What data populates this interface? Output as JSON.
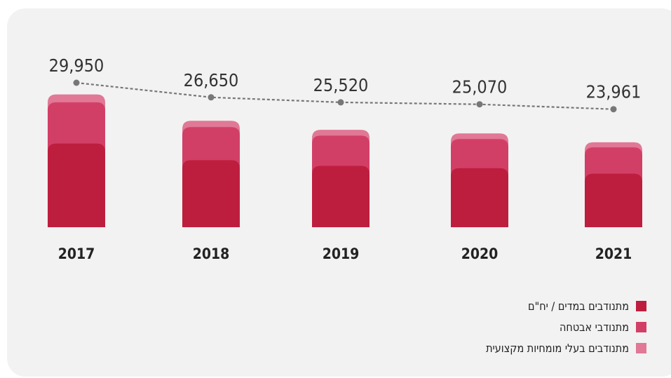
{
  "chart_data": {
    "type": "bar",
    "stacked": true,
    "categories": [
      "2017",
      "2018",
      "2019",
      "2020",
      "2021"
    ],
    "series": [
      {
        "name": "מתנודבים במדים / יח\"ם",
        "color": "#be1e3e"
      },
      {
        "name": "מתנודבי אבטחה",
        "color": "#d23f66"
      },
      {
        "name": "מתנודבים בעלי מומחיות מקצועית",
        "color": "#e07896"
      }
    ],
    "totals": [
      29950,
      26650,
      25520,
      25070,
      23961
    ],
    "total_labels": [
      "29,950",
      "26,650",
      "25,520",
      "25,070",
      "23,961"
    ],
    "line": {
      "values": [
        29950,
        26650,
        25520,
        25070,
        23961
      ],
      "style": "dotted",
      "color": "#777777"
    },
    "grid": false,
    "legend_position": "bottom-right"
  }
}
